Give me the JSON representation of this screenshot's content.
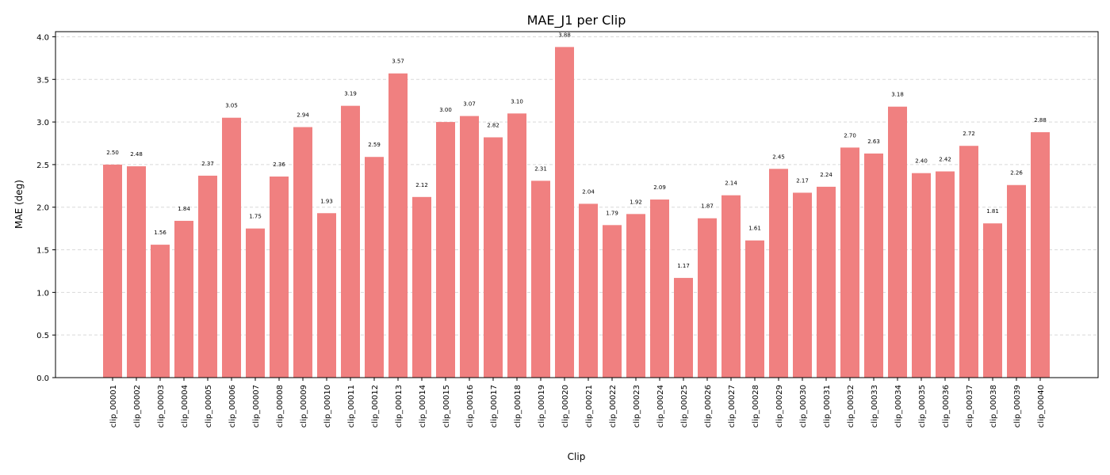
{
  "chart_data": {
    "type": "bar",
    "title": "MAE_J1 per Clip",
    "xlabel": "Clip",
    "ylabel": "MAE (deg)",
    "ylim": [
      0,
      4.06
    ],
    "yticks": [
      "0.0",
      "0.5",
      "1.0",
      "1.5",
      "2.0",
      "2.5",
      "3.0",
      "3.5",
      "4.0"
    ],
    "grid": "y-dashed",
    "bar_color": "#f08080",
    "categories": [
      "clip_00001",
      "clip_00002",
      "clip_00003",
      "clip_00004",
      "clip_00005",
      "clip_00006",
      "clip_00007",
      "clip_00008",
      "clip_00009",
      "clip_00010",
      "clip_00011",
      "clip_00012",
      "clip_00013",
      "clip_00014",
      "clip_00015",
      "clip_00016",
      "clip_00017",
      "clip_00018",
      "clip_00019",
      "clip_00020",
      "clip_00021",
      "clip_00022",
      "clip_00023",
      "clip_00024",
      "clip_00025",
      "clip_00026",
      "clip_00027",
      "clip_00028",
      "clip_00029",
      "clip_00030",
      "clip_00031",
      "clip_00032",
      "clip_00033",
      "clip_00034",
      "clip_00035",
      "clip_00036",
      "clip_00037",
      "clip_00038",
      "clip_00039",
      "clip_00040"
    ],
    "values": [
      2.5,
      2.48,
      1.56,
      1.84,
      2.37,
      3.05,
      1.75,
      2.36,
      2.94,
      1.93,
      3.19,
      2.59,
      3.57,
      2.12,
      3.0,
      3.07,
      2.82,
      3.1,
      2.31,
      3.88,
      2.04,
      1.79,
      1.92,
      2.09,
      1.17,
      1.87,
      2.14,
      1.61,
      2.45,
      2.17,
      2.24,
      2.7,
      2.63,
      3.18,
      2.4,
      2.42,
      2.72,
      1.81,
      2.26,
      2.88
    ],
    "data_labels": [
      "2.50",
      "2.48",
      "1.56",
      "1.84",
      "2.37",
      "3.05",
      "1.75",
      "2.36",
      "2.94",
      "1.93",
      "3.19",
      "2.59",
      "3.57",
      "2.12",
      "3.00",
      "3.07",
      "2.82",
      "3.10",
      "2.31",
      "3.88",
      "2.04",
      "1.79",
      "1.92",
      "2.09",
      "1.17",
      "1.87",
      "2.14",
      "1.61",
      "2.45",
      "2.17",
      "2.24",
      "2.70",
      "2.63",
      "3.18",
      "2.40",
      "2.42",
      "2.72",
      "1.81",
      "2.26",
      "2.88"
    ]
  }
}
